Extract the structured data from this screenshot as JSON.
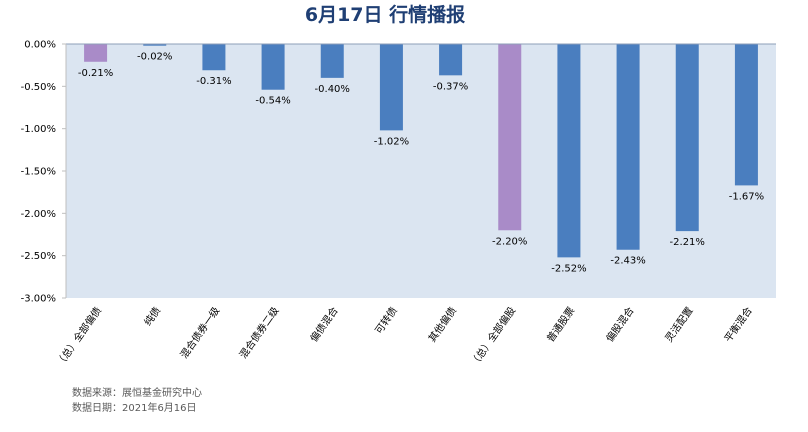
{
  "colors": {
    "plot_bg": "#dbe5f1",
    "bar_default": "#4a7ebf",
    "bar_highlight": "#a98bc8",
    "title": "#1f3f74"
  },
  "chart_data": {
    "type": "bar",
    "title": "6月17日  行情播报",
    "xlabel": "",
    "ylabel": "",
    "ylim": [
      -3.0,
      0.0
    ],
    "yticks": [
      "0.00%",
      "-0.50%",
      "-1.00%",
      "-1.50%",
      "-2.00%",
      "-2.50%",
      "-3.00%"
    ],
    "grid": false,
    "legend": "none",
    "unit": "%",
    "categories": [
      "（总）全部偏债",
      "纯债",
      "混合债券一级",
      "混合债券二级",
      "偏债混合",
      "可转债",
      "其他偏债",
      "（总）全部偏股",
      "普通股票",
      "偏股混合",
      "灵活配置",
      "平衡混合"
    ],
    "values": [
      -0.21,
      -0.02,
      -0.31,
      -0.54,
      -0.4,
      -1.02,
      -0.37,
      -2.2,
      -2.52,
      -2.43,
      -2.21,
      -1.67
    ],
    "labels": [
      "-0.21%",
      "-0.02%",
      "-0.31%",
      "-0.54%",
      "-0.40%",
      "-1.02%",
      "-0.37%",
      "-2.20%",
      "-2.52%",
      "-2.43%",
      "-2.21%",
      "-1.67%"
    ],
    "highlight": [
      true,
      false,
      false,
      false,
      false,
      false,
      false,
      true,
      false,
      false,
      false,
      false
    ]
  },
  "footnotes": {
    "source": "数据来源：展恒基金研究中心",
    "date": "数据日期：2021年6月16日"
  }
}
